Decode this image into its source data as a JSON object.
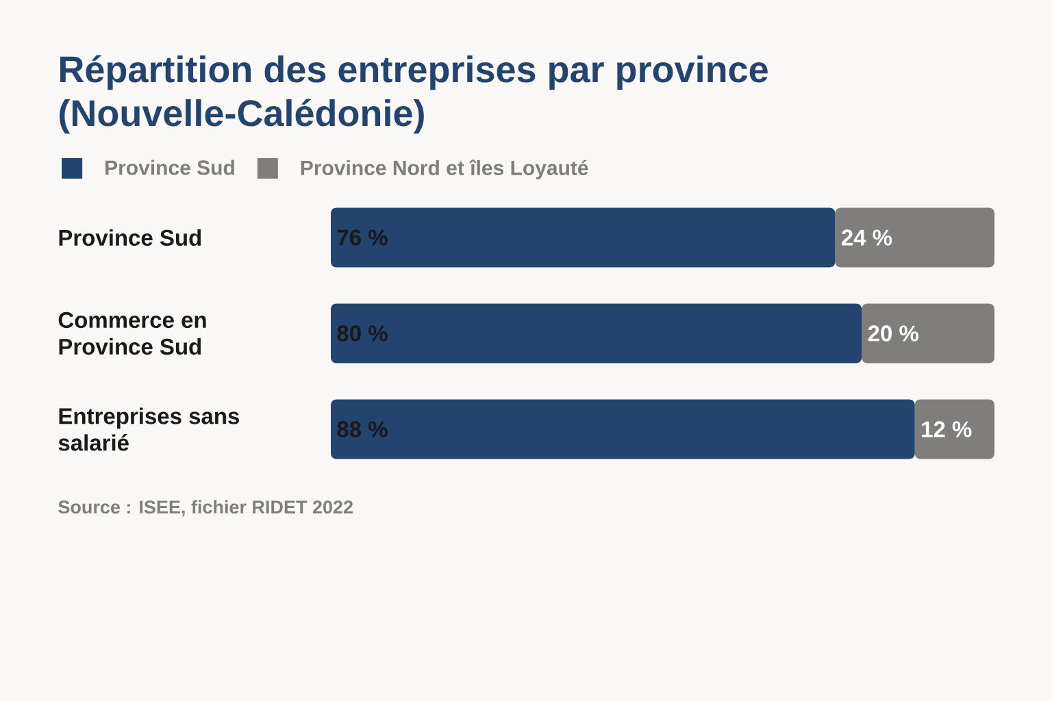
{
  "chart_data": {
    "type": "bar",
    "orientation": "horizontal",
    "stacked": true,
    "title": "Répartition des entreprises par province (Nouvelle-Calédonie)",
    "categories": [
      "Province Sud",
      "Commerce en Province Sud",
      "Entreprises sans salarié"
    ],
    "series": [
      {
        "name": "Province Sud",
        "color": "#23446f",
        "values": [
          76,
          80,
          88
        ],
        "value_labels": [
          "76 %",
          "80 %",
          "88 %"
        ]
      },
      {
        "name": "Province Nord et îles Loyauté",
        "color": "#7f7e7c",
        "values": [
          24,
          20,
          12
        ],
        "value_labels": [
          "24 %",
          "20 %",
          "12 %"
        ]
      }
    ],
    "xlim": [
      0,
      100
    ],
    "tick_labels": "y",
    "legend": "top left",
    "annotations": [
      "Source : ISEE, fichier RIDET 2022"
    ]
  }
}
